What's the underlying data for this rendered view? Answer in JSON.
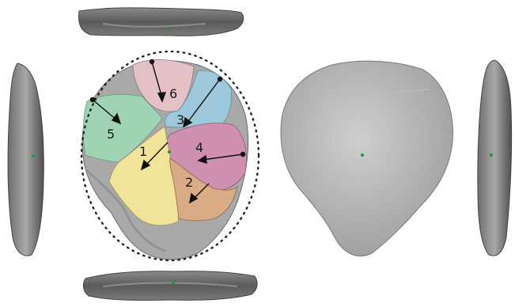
{
  "figure": {
    "facets": [
      {
        "id": "1",
        "label": "1",
        "color": "#f0e39a"
      },
      {
        "id": "2",
        "label": "2",
        "color": "#d9ac86"
      },
      {
        "id": "3",
        "label": "3",
        "color": "#9ec8dc"
      },
      {
        "id": "4",
        "label": "4",
        "color": "#cf8fb0"
      },
      {
        "id": "5",
        "label": "5",
        "color": "#9fd3b3"
      },
      {
        "id": "6",
        "label": "6",
        "color": "#e3c1c6"
      }
    ],
    "stone_color": "#9c9c9c",
    "stone_light": "#c4c4c4",
    "edge_color": "#5a5a5a",
    "center_point_color": "#1a9a3a",
    "arrow_color": "#111111"
  }
}
